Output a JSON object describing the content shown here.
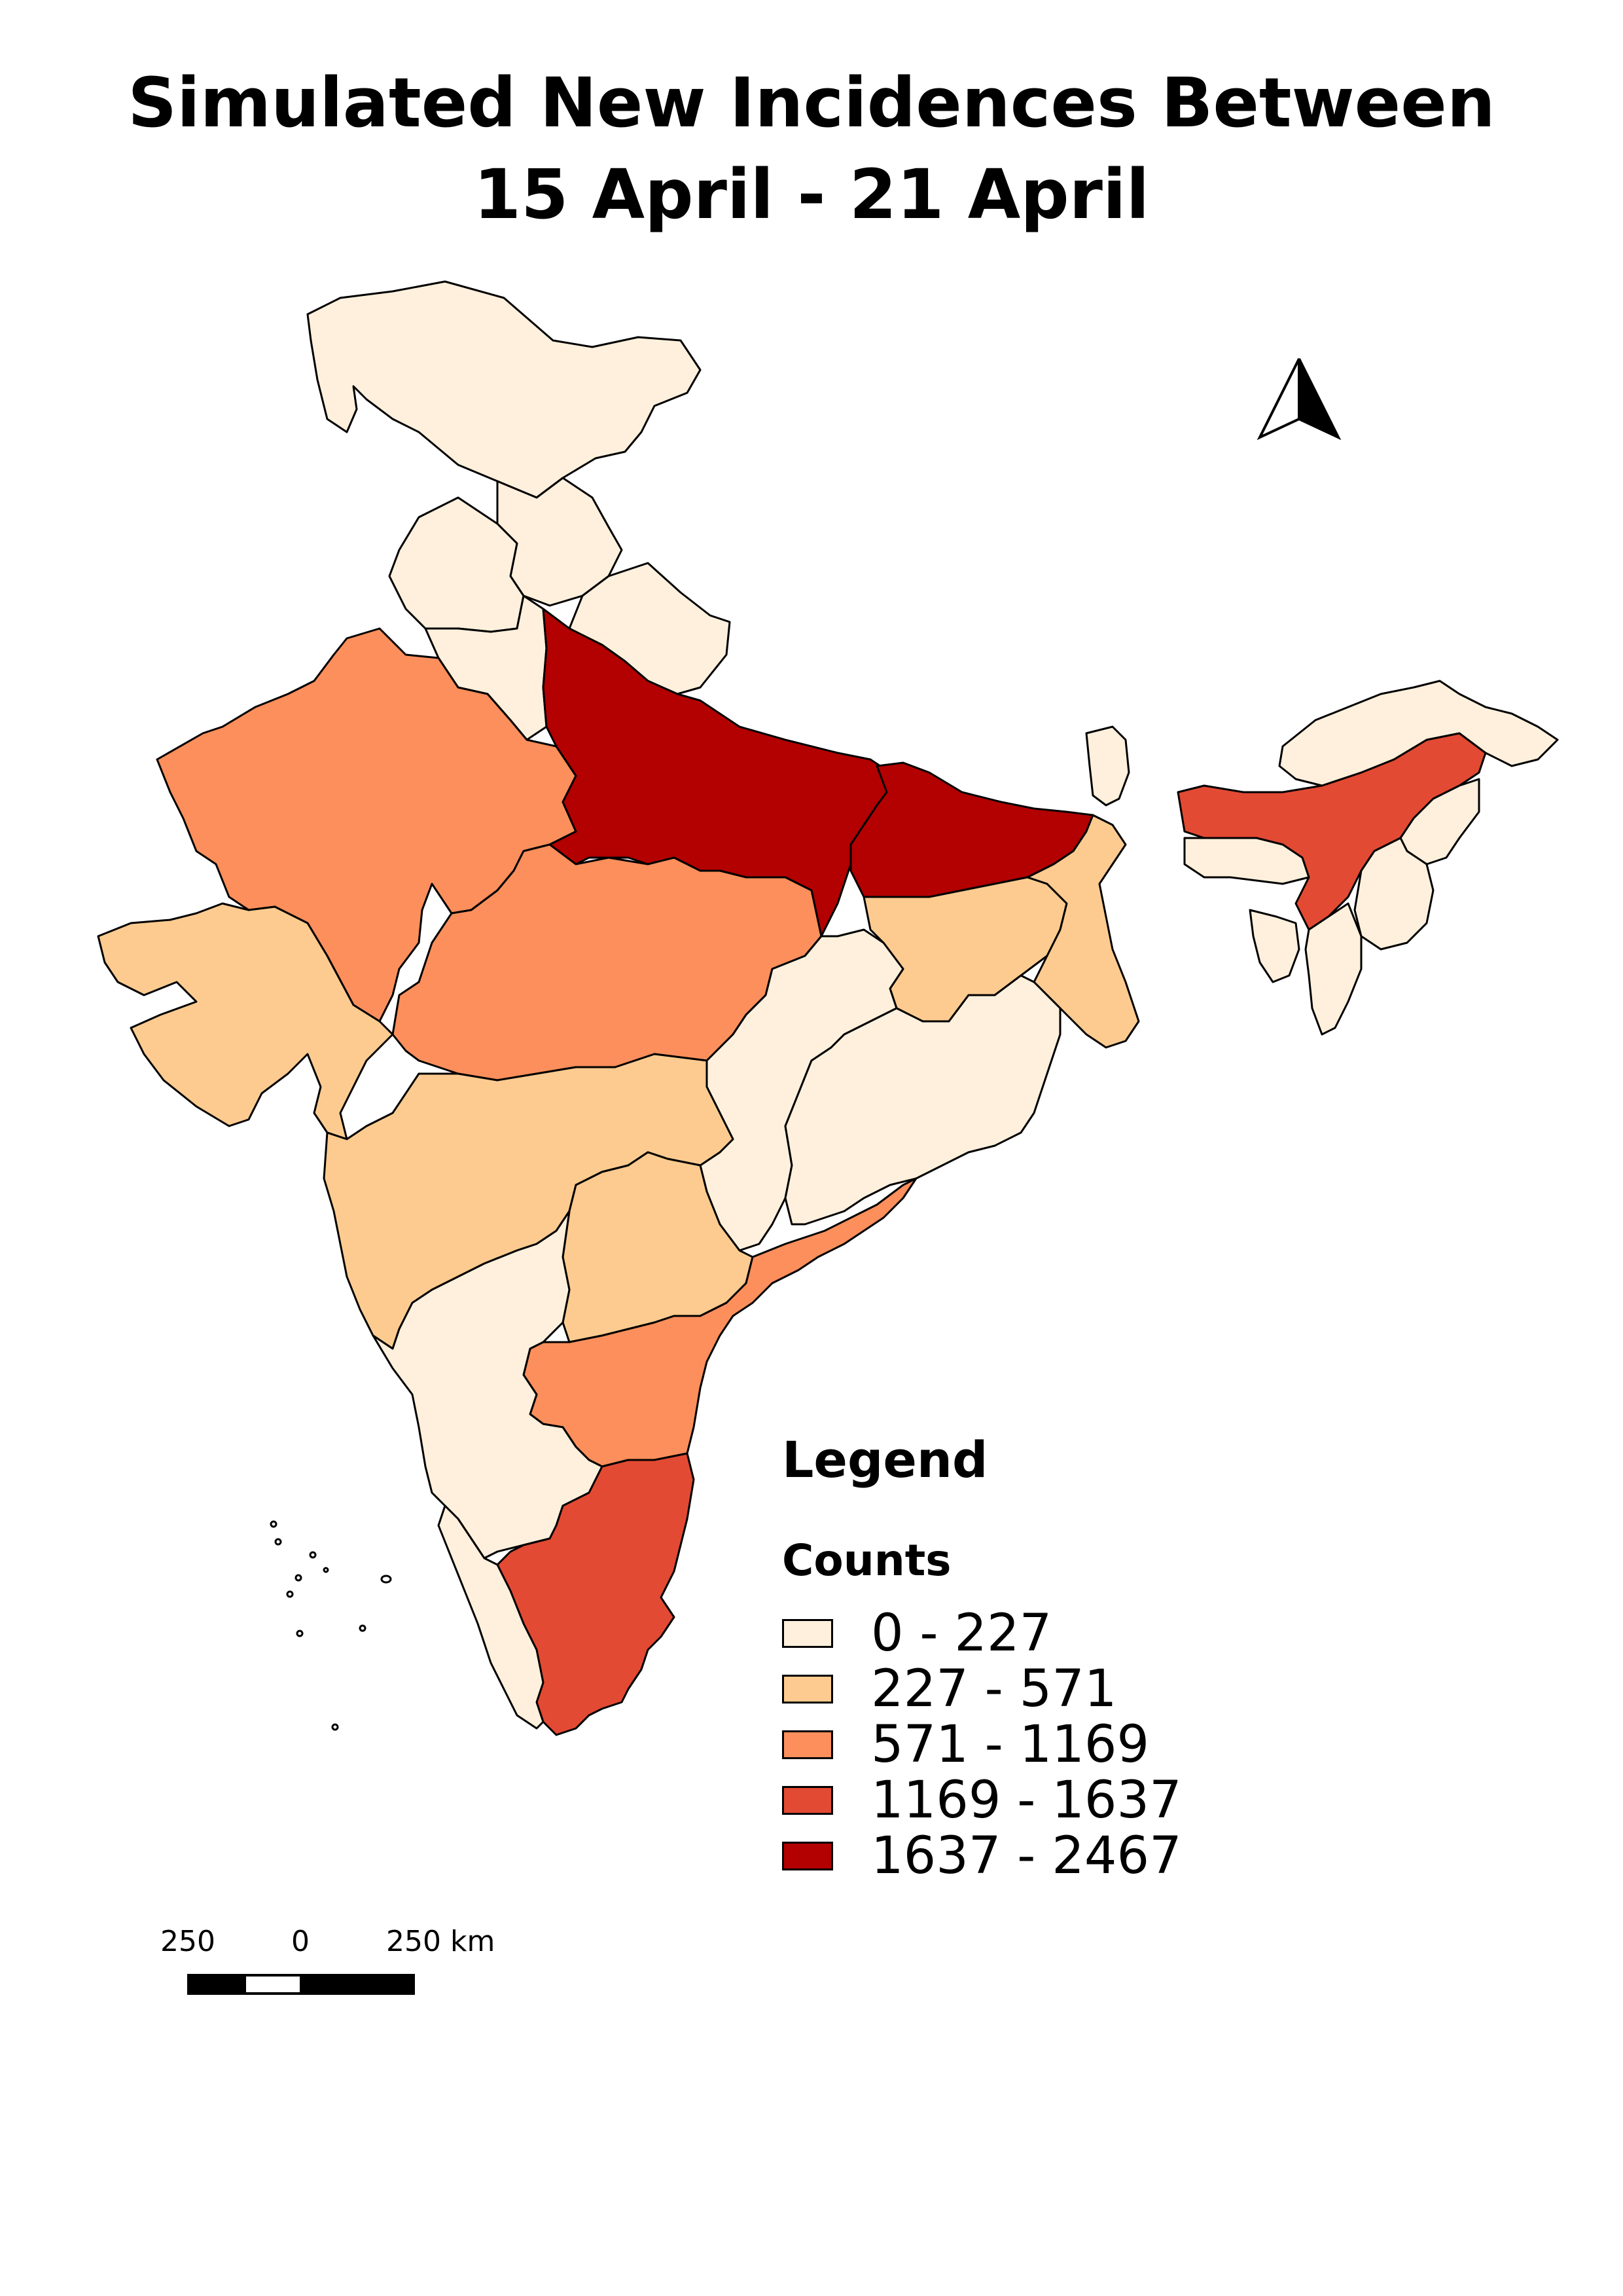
{
  "title_line1": "Simulated New Incidences Between",
  "title_line2": "15 April - 21 April",
  "legend": {
    "title": "Legend",
    "subtitle": "Counts",
    "classes": [
      {
        "label": "0 - 227",
        "color": "#fef0dc"
      },
      {
        "label": "227 - 571",
        "color": "#fdcb90"
      },
      {
        "label": "571 - 1169",
        "color": "#fc8f5c"
      },
      {
        "label": "1169 - 1637",
        "color": "#e34a33"
      },
      {
        "label": "1637 - 2467",
        "color": "#b30000"
      }
    ]
  },
  "scale_bar": {
    "left_label": "250",
    "mid_label": "0",
    "right_label": "250 km"
  },
  "north_arrow": "north-arrow-icon",
  "regions": [
    {
      "name": "Jammu and Kashmir",
      "class": 0
    },
    {
      "name": "Himachal Pradesh",
      "class": 0
    },
    {
      "name": "Punjab",
      "class": 0
    },
    {
      "name": "Haryana",
      "class": 0
    },
    {
      "name": "Uttarakhand",
      "class": 0
    },
    {
      "name": "Rajasthan",
      "class": 2
    },
    {
      "name": "Uttar Pradesh",
      "class": 4
    },
    {
      "name": "Bihar",
      "class": 4
    },
    {
      "name": "Gujarat",
      "class": 1
    },
    {
      "name": "Madhya Pradesh",
      "class": 2
    },
    {
      "name": "Jharkhand",
      "class": 1
    },
    {
      "name": "West Bengal",
      "class": 1
    },
    {
      "name": "Chhattisgarh",
      "class": 0
    },
    {
      "name": "Odisha",
      "class": 0
    },
    {
      "name": "Maharashtra",
      "class": 1
    },
    {
      "name": "Telangana",
      "class": 1
    },
    {
      "name": "Andhra Pradesh",
      "class": 2
    },
    {
      "name": "Karnataka",
      "class": 0
    },
    {
      "name": "Tamil Nadu",
      "class": 3
    },
    {
      "name": "Kerala",
      "class": 0
    },
    {
      "name": "Sikkim",
      "class": 0
    },
    {
      "name": "Assam",
      "class": 3
    },
    {
      "name": "Arunachal Pradesh",
      "class": 0
    },
    {
      "name": "Meghalaya",
      "class": 0
    },
    {
      "name": "Nagaland",
      "class": 0
    },
    {
      "name": "Manipur",
      "class": 0
    },
    {
      "name": "Mizoram",
      "class": 0
    },
    {
      "name": "Tripura",
      "class": 0
    }
  ]
}
